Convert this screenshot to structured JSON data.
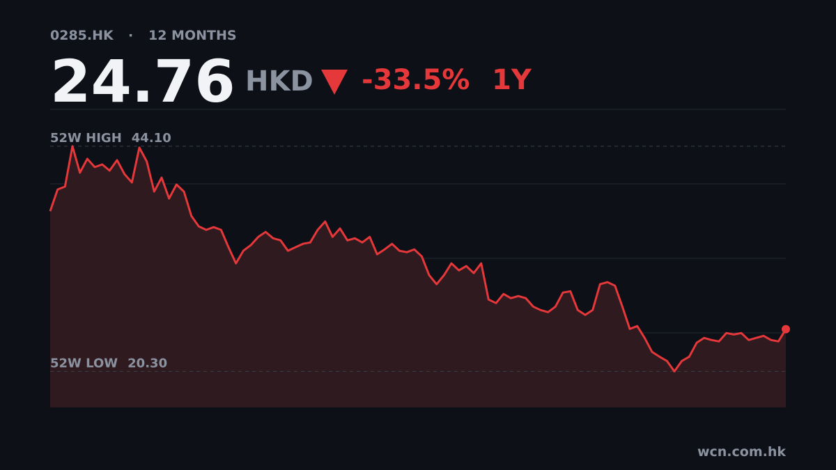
{
  "chart_data": {
    "type": "line",
    "ticker": "0285.HK",
    "separator": "·",
    "period": "12 MONTHS",
    "price": 24.76,
    "currency": "HKD",
    "change": -33.5,
    "change_label": "-33.5%",
    "range_label": "1Y",
    "source": "wcn.com.hk",
    "reference_lines": [
      {
        "label": "52W HIGH",
        "value": 44.1,
        "value_label": "44.10"
      },
      {
        "label": "52W LOW",
        "value": 20.3,
        "value_label": "20.30"
      }
    ],
    "series": [
      {
        "color": "#e5383b",
        "fill": "#2e1a1f",
        "values": [
          37.23,
          39.53,
          39.83,
          44.1,
          41.3,
          42.77,
          41.89,
          42.18,
          41.52,
          42.63,
          41.15,
          40.27,
          43.95,
          42.48,
          39.31,
          40.78,
          38.57,
          40.05,
          39.31,
          36.73,
          35.63,
          35.26,
          35.55,
          35.26,
          33.42,
          31.72,
          33.05,
          33.64,
          34.52,
          35.04,
          34.37,
          34.15,
          33.05,
          33.42,
          33.78,
          33.93,
          35.26,
          36.14,
          34.52,
          35.41,
          34.15,
          34.37,
          33.93,
          34.52,
          32.68,
          33.19,
          33.78,
          33.05,
          32.9,
          33.19,
          32.46,
          30.47,
          29.51,
          30.47,
          31.72,
          30.98,
          31.43,
          30.69,
          31.72,
          27.89,
          27.52,
          28.48,
          28.04,
          28.26,
          28.04,
          27.15,
          26.78,
          26.56,
          27.15,
          28.63,
          28.77,
          26.78,
          26.27,
          26.78,
          29.51,
          29.73,
          29.36,
          27.15,
          24.79,
          25.09,
          23.84,
          22.36,
          21.85,
          21.4,
          20.3,
          21.4,
          21.85,
          23.32,
          23.84,
          23.62,
          23.47,
          24.35,
          24.2,
          24.35,
          23.62,
          23.84,
          24.06,
          23.62,
          23.47,
          24.76
        ]
      }
    ],
    "ylim": [
      16.5,
      48
    ],
    "yticks": [
      24.375,
      32.25,
      40.125
    ],
    "grid": true
  }
}
